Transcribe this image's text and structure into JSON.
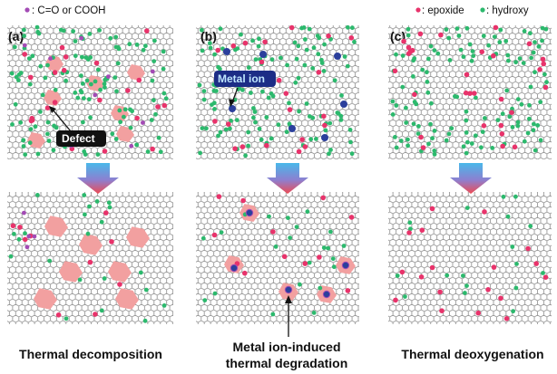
{
  "legend": {
    "carbonyl": "C=O or COOH",
    "epoxide": "epoxide",
    "hydroxy": "hydroxy",
    "separator": ": "
  },
  "panels": [
    {
      "label": "(a)",
      "annotation": "Defect",
      "caption_lines": [
        "Thermal decomposition"
      ]
    },
    {
      "label": "(b)",
      "annotation": "Metal ion",
      "caption_lines": [
        "Metal ion-induced",
        "thermal degradation"
      ]
    },
    {
      "label": "(c)",
      "annotation": "",
      "caption_lines": [
        "Thermal deoxygenation"
      ]
    }
  ],
  "colors": {
    "lattice": "#9a9a9a",
    "epoxide": "#e8336b",
    "hydroxy": "#2cb96d",
    "carbonyl": "#a34bb5",
    "defect": "#f2a0a0",
    "metal_ion": "#2b3f9c",
    "arrow_top": "#49b8ea",
    "arrow_bottom": "#ee4b53",
    "annotation_bg": "#111111",
    "metal_label_text": "#bfe6ff"
  }
}
